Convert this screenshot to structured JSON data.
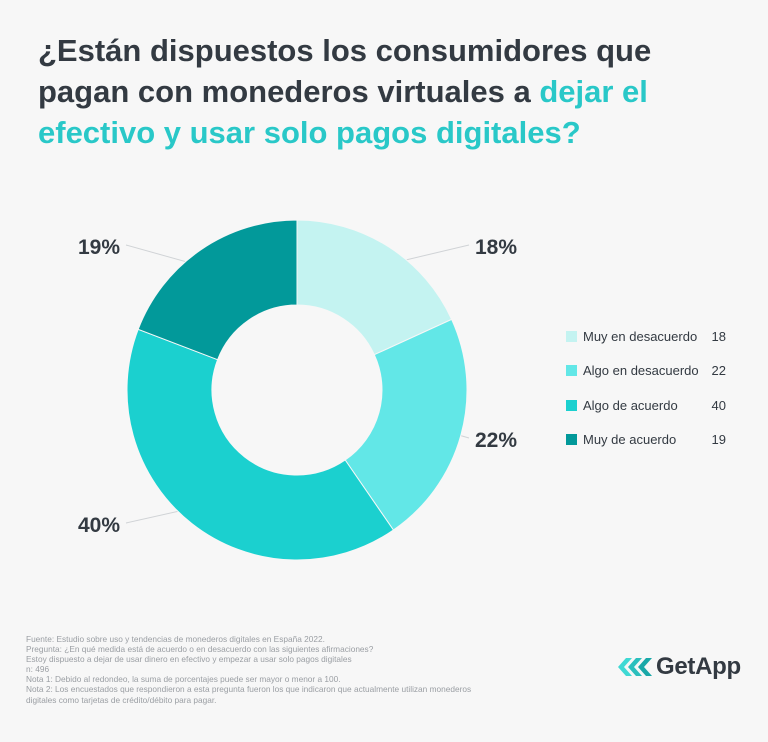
{
  "title": {
    "part1": "¿Están dispuestos los consumidores que pagan con monederos virtuales a ",
    "highlight": "dejar el efectivo y usar solo pagos digitales?"
  },
  "colors": {
    "title_text": "#333a42",
    "title_highlight": "#29c8c8",
    "slice_1": "#c4f3f1",
    "slice_2": "#62e7e7",
    "slice_3": "#1bd0cf",
    "slice_4": "#02999a"
  },
  "chart_data": {
    "type": "pie",
    "donut": true,
    "legend_position": "right",
    "categories": [
      "Muy en desacuerdo",
      "Algo en desacuerdo",
      "Algo de acuerdo",
      "Muy de acuerdo"
    ],
    "values": [
      18,
      22,
      40,
      19
    ],
    "data_labels": [
      "18%",
      "22%",
      "40%",
      "19%"
    ]
  },
  "notes": [
    "Fuente: Estudio sobre uso y tendencias de monederos digitales en España 2022.",
    "Pregunta: ¿En qué medida está de acuerdo o en desacuerdo con las siguientes afirmaciones?",
    "Estoy dispuesto a dejar de usar dinero en efectivo y empezar a usar solo pagos digitales",
    "n: 496",
    "Nota 1: Debido al redondeo, la suma de porcentajes puede ser mayor o menor a 100.",
    "Nota 2: Los encuestados que respondieron a esta pregunta fueron los que indicaron que actualmente utilizan monederos",
    "digitales como tarjetas de crédito/débito para pagar."
  ],
  "logo": {
    "text": "GetApp",
    "icon": "getapp-chevrons-icon"
  }
}
